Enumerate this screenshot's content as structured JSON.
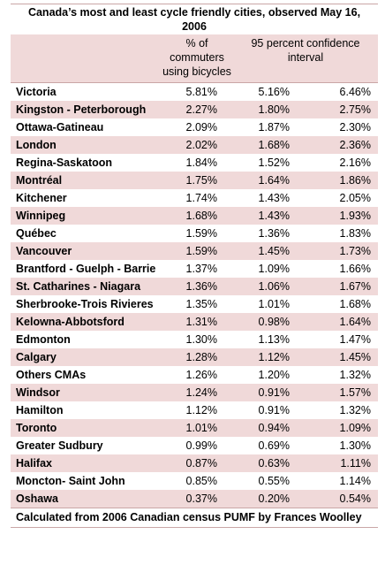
{
  "title": "Canada’s most and least cycle friendly cities, observed May 16, 2006",
  "headers": {
    "city": "",
    "pct": "% of commuters using bicycles",
    "ci": "95 percent confidence interval"
  },
  "rows": [
    {
      "city": "Victoria",
      "pct": "5.81%",
      "lo": "5.16%",
      "hi": "6.46%"
    },
    {
      "city": "Kingston - Peterborough",
      "pct": "2.27%",
      "lo": "1.80%",
      "hi": "2.75%"
    },
    {
      "city": "Ottawa-Gatineau",
      "pct": "2.09%",
      "lo": "1.87%",
      "hi": "2.30%"
    },
    {
      "city": "London",
      "pct": "2.02%",
      "lo": "1.68%",
      "hi": "2.36%"
    },
    {
      "city": "Regina-Saskatoon",
      "pct": "1.84%",
      "lo": "1.52%",
      "hi": "2.16%"
    },
    {
      "city": "Montréal",
      "pct": "1.75%",
      "lo": "1.64%",
      "hi": "1.86%"
    },
    {
      "city": "Kitchener",
      "pct": "1.74%",
      "lo": "1.43%",
      "hi": "2.05%"
    },
    {
      "city": "Winnipeg",
      "pct": "1.68%",
      "lo": "1.43%",
      "hi": "1.93%"
    },
    {
      "city": "Québec",
      "pct": "1.59%",
      "lo": "1.36%",
      "hi": "1.83%"
    },
    {
      "city": "Vancouver",
      "pct": "1.59%",
      "lo": "1.45%",
      "hi": "1.73%"
    },
    {
      "city": "Brantford - Guelph - Barrie",
      "pct": "1.37%",
      "lo": "1.09%",
      "hi": "1.66%"
    },
    {
      "city": "St. Catharines - Niagara",
      "pct": "1.36%",
      "lo": "1.06%",
      "hi": "1.67%"
    },
    {
      "city": "Sherbrooke-Trois Rivieres",
      "pct": "1.35%",
      "lo": "1.01%",
      "hi": "1.68%"
    },
    {
      "city": "Kelowna-Abbotsford",
      "pct": "1.31%",
      "lo": "0.98%",
      "hi": "1.64%"
    },
    {
      "city": "Edmonton",
      "pct": "1.30%",
      "lo": "1.13%",
      "hi": "1.47%"
    },
    {
      "city": "Calgary",
      "pct": "1.28%",
      "lo": "1.12%",
      "hi": "1.45%"
    },
    {
      "city": "Others CMAs",
      "pct": "1.26%",
      "lo": "1.20%",
      "hi": "1.32%"
    },
    {
      "city": "Windsor",
      "pct": "1.24%",
      "lo": "0.91%",
      "hi": "1.57%"
    },
    {
      "city": "Hamilton",
      "pct": "1.12%",
      "lo": "0.91%",
      "hi": "1.32%"
    },
    {
      "city": "Toronto",
      "pct": "1.01%",
      "lo": "0.94%",
      "hi": "1.09%"
    },
    {
      "city": "Greater Sudbury",
      "pct": "0.99%",
      "lo": "0.69%",
      "hi": "1.30%"
    },
    {
      "city": "Halifax",
      "pct": "0.87%",
      "lo": "0.63%",
      "hi": "1.11%"
    },
    {
      "city": "Moncton- Saint John",
      "pct": "0.85%",
      "lo": "0.55%",
      "hi": "1.14%"
    },
    {
      "city": "Oshawa",
      "pct": "0.37%",
      "lo": "0.20%",
      "hi": "0.54%"
    }
  ],
  "footer": "Calculated from 2006 Canadian census PUMF by Frances Woolley"
}
